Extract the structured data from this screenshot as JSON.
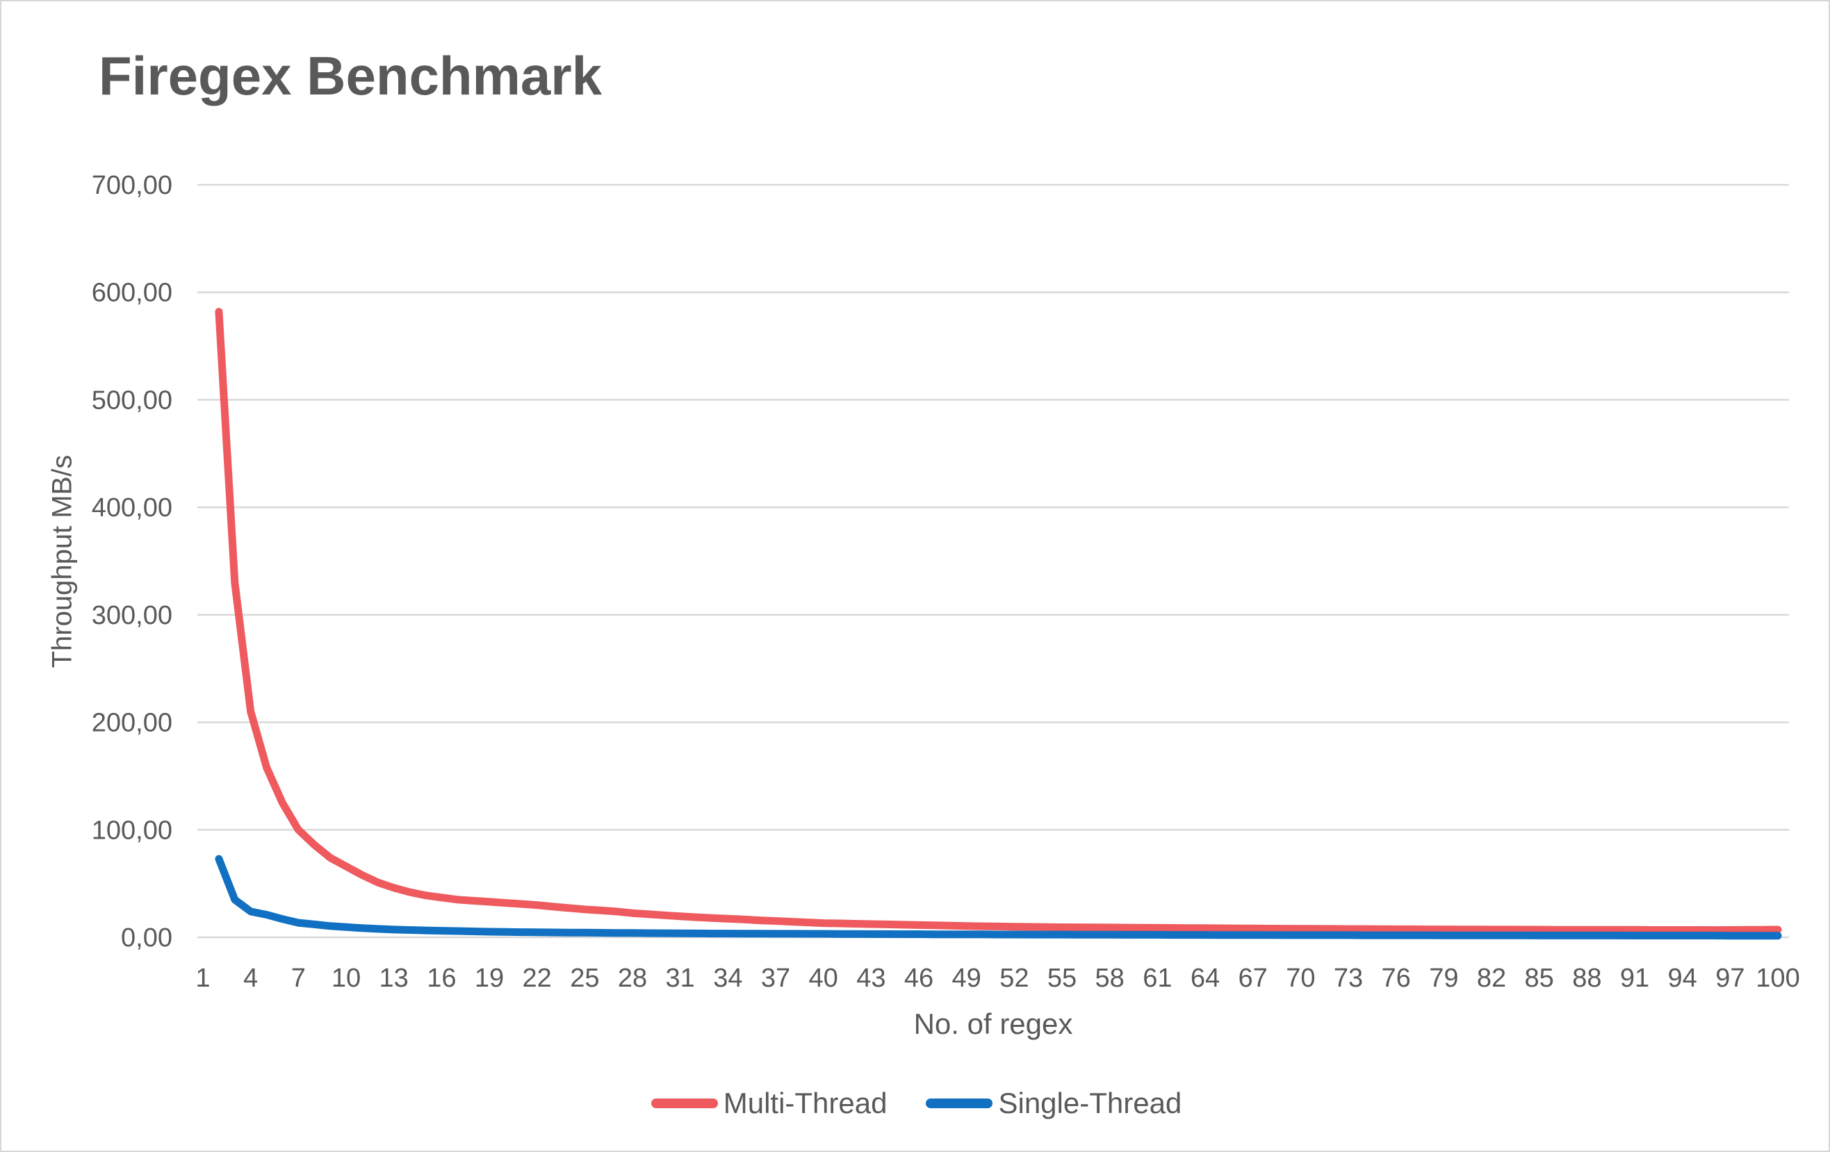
{
  "chart_data": {
    "type": "line",
    "title": "Firegex Benchmark",
    "xlabel": "No. of regex",
    "ylabel": "Throughput MB/s",
    "xlim": [
      1,
      100
    ],
    "ylim": [
      0,
      700
    ],
    "grid": "horizontal",
    "legend_position": "bottom-center",
    "grid_color": "#D9D9D9",
    "text_color": "#595959",
    "y_tick_labels": [
      "0,00",
      "100,00",
      "200,00",
      "300,00",
      "400,00",
      "500,00",
      "600,00",
      "700,00"
    ],
    "y_tick_values": [
      0,
      100,
      200,
      300,
      400,
      500,
      600,
      700
    ],
    "x_tick_values": [
      1,
      4,
      7,
      10,
      13,
      16,
      19,
      22,
      25,
      28,
      31,
      34,
      37,
      40,
      43,
      46,
      49,
      52,
      55,
      58,
      61,
      64,
      67,
      70,
      73,
      76,
      79,
      82,
      85,
      88,
      91,
      94,
      97,
      100
    ],
    "x_first": 2,
    "x_step": 1,
    "series": [
      {
        "name": "Multi-Thread",
        "color": "#EE5A5E",
        "values": [
          582,
          330,
          210,
          158,
          125,
          100,
          86,
          74,
          66,
          58,
          51,
          46,
          42,
          39,
          37,
          35,
          34,
          33,
          32,
          31,
          30,
          28.5,
          27.2,
          26,
          25,
          24,
          22.5,
          21.5,
          20.5,
          19.5,
          18.7,
          18,
          17.3,
          16.6,
          15.8,
          15.2,
          14.5,
          13.8,
          13.2,
          12.9,
          12.6,
          12.3,
          12,
          11.7,
          11.4,
          11.1,
          10.8,
          10.5,
          10.3,
          10.1,
          9.9,
          9.7,
          9.5,
          9.4,
          9.3,
          9.2,
          9.1,
          9,
          8.9,
          8.8,
          8.7,
          8.6,
          8.5,
          8.4,
          8.3,
          8.2,
          8.1,
          8,
          7.9,
          7.9,
          7.8,
          7.7,
          7.7,
          7.6,
          7.5,
          7.5,
          7.4,
          7.4,
          7.3,
          7.3,
          7.2,
          7.2,
          7.1,
          7.1,
          7,
          7,
          7,
          6.9,
          6.9,
          6.9,
          6.8,
          6.8,
          6.8,
          6.8,
          6.7,
          6.8,
          6.9,
          7,
          7.1
        ]
      },
      {
        "name": "Single-Thread",
        "color": "#1170C2",
        "values": [
          73,
          35,
          24,
          21,
          17,
          13.5,
          12,
          10.5,
          9.5,
          8.5,
          7.8,
          7.2,
          6.8,
          6.4,
          6.1,
          5.8,
          5.5,
          5.2,
          5,
          4.8,
          4.7,
          4.5,
          4.4,
          4.3,
          4.2,
          4.1,
          4,
          3.9,
          3.8,
          3.7,
          3.6,
          3.5,
          3.5,
          3.4,
          3.4,
          3.3,
          3.3,
          3.2,
          3.2,
          3.1,
          3.1,
          3,
          3,
          2.9,
          2.9,
          2.8,
          2.8,
          2.7,
          2.7,
          2.6,
          2.6,
          2.5,
          2.5,
          2.5,
          2.4,
          2.4,
          2.4,
          2.3,
          2.3,
          2.3,
          2.2,
          2.2,
          2.2,
          2.1,
          2.1,
          2.1,
          2.1,
          2,
          2,
          2,
          2,
          2,
          1.9,
          1.9,
          1.9,
          1.9,
          1.9,
          1.8,
          1.8,
          1.8,
          1.8,
          1.8,
          1.8,
          1.7,
          1.7,
          1.7,
          1.7,
          1.7,
          1.7,
          1.6,
          1.6,
          1.6,
          1.6,
          1.6,
          1.6,
          1.5,
          1.5,
          1.5,
          1.5
        ]
      }
    ]
  }
}
